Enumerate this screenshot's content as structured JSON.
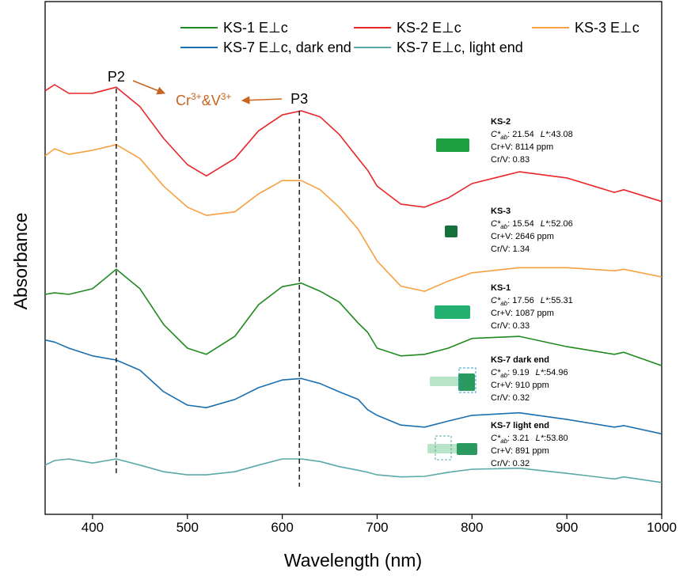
{
  "chart_data": {
    "type": "line",
    "x_label": "Wavelength (nm)",
    "y_label": "Absorbance",
    "xlim": [
      350,
      1000
    ],
    "xticks": [
      400,
      500,
      600,
      700,
      800,
      900,
      1000
    ],
    "ylim": [
      0,
      10
    ],
    "x": [
      350,
      360,
      375,
      400,
      425,
      450,
      475,
      500,
      520,
      550,
      575,
      600,
      620,
      640,
      660,
      680,
      690,
      700,
      725,
      750,
      775,
      800,
      850,
      900,
      950,
      960,
      1000
    ],
    "series": [
      {
        "name": "KS-1 E⊥c",
        "color": "#1f8a1f",
        "values": [
          4.29,
          4.32,
          4.29,
          4.4,
          4.78,
          4.4,
          3.7,
          3.24,
          3.12,
          3.47,
          4.09,
          4.44,
          4.51,
          4.35,
          4.14,
          3.73,
          3.55,
          3.24,
          3.09,
          3.12,
          3.24,
          3.43,
          3.47,
          3.27,
          3.12,
          3.16,
          2.9
        ]
      },
      {
        "name": "KS-2 E⊥c",
        "color": "#e8262a",
        "values": [
          8.26,
          8.38,
          8.21,
          8.21,
          8.33,
          7.95,
          7.33,
          6.82,
          6.6,
          6.94,
          7.48,
          7.79,
          7.87,
          7.75,
          7.41,
          6.94,
          6.71,
          6.4,
          6.05,
          5.99,
          6.17,
          6.45,
          6.68,
          6.56,
          6.28,
          6.33,
          6.1
        ]
      },
      {
        "name": "KS-3 E⊥c",
        "color": "#f7a040",
        "values": [
          6.99,
          7.13,
          7.02,
          7.1,
          7.21,
          6.94,
          6.4,
          5.99,
          5.83,
          5.9,
          6.25,
          6.51,
          6.51,
          6.33,
          5.99,
          5.56,
          5.25,
          4.94,
          4.45,
          4.35,
          4.55,
          4.71,
          4.81,
          4.81,
          4.75,
          4.78,
          4.63
        ]
      },
      {
        "name": "KS-7 E⊥c, dark end",
        "color": "#1a6fb0",
        "values": [
          3.4,
          3.36,
          3.24,
          3.09,
          3.01,
          2.81,
          2.39,
          2.13,
          2.08,
          2.24,
          2.47,
          2.62,
          2.65,
          2.55,
          2.39,
          2.24,
          2.04,
          1.93,
          1.74,
          1.7,
          1.82,
          1.93,
          1.98,
          1.85,
          1.7,
          1.73,
          1.57
        ]
      },
      {
        "name": "KS-7 E⊥c, light end",
        "color": "#5aa9a8",
        "values": [
          0.96,
          1.05,
          1.08,
          1.0,
          1.08,
          0.96,
          0.83,
          0.77,
          0.77,
          0.83,
          0.96,
          1.08,
          1.08,
          1.03,
          0.93,
          0.86,
          0.82,
          0.77,
          0.73,
          0.74,
          0.82,
          0.88,
          0.9,
          0.8,
          0.69,
          0.73,
          0.62
        ]
      }
    ],
    "peak_lines": [
      {
        "x": 425,
        "label": "P2"
      },
      {
        "x": 618,
        "label": "P3"
      }
    ],
    "annotation": [
      "Cr",
      "3+",
      "&V",
      "3+"
    ],
    "info_labels": {
      "c": "C*",
      "c_sub": "ab",
      "l": "L*",
      "colon": ":",
      "crv": "Cr+V",
      "ratio": "Cr/V"
    },
    "samples": [
      {
        "name": "KS-2",
        "cab": "21.54",
        "l": "43.08",
        "crv": "8114 ppm",
        "ratio": "0.83"
      },
      {
        "name": "KS-3",
        "cab": "15.54",
        "l": "52.06",
        "crv": "2646 ppm",
        "ratio": "1.34"
      },
      {
        "name": "KS-1",
        "cab": "17.56",
        "l": "55.31",
        "crv": "1087 ppm",
        "ratio": "0.33"
      },
      {
        "name": "KS-7 dark end",
        "cab": "9.19",
        "l": "54.96",
        "crv": "910 ppm",
        "ratio": "0.32"
      },
      {
        "name": "KS-7 light end",
        "cab": "3.21",
        "l": "53.80",
        "crv": "891 ppm",
        "ratio": "0.32"
      }
    ]
  }
}
